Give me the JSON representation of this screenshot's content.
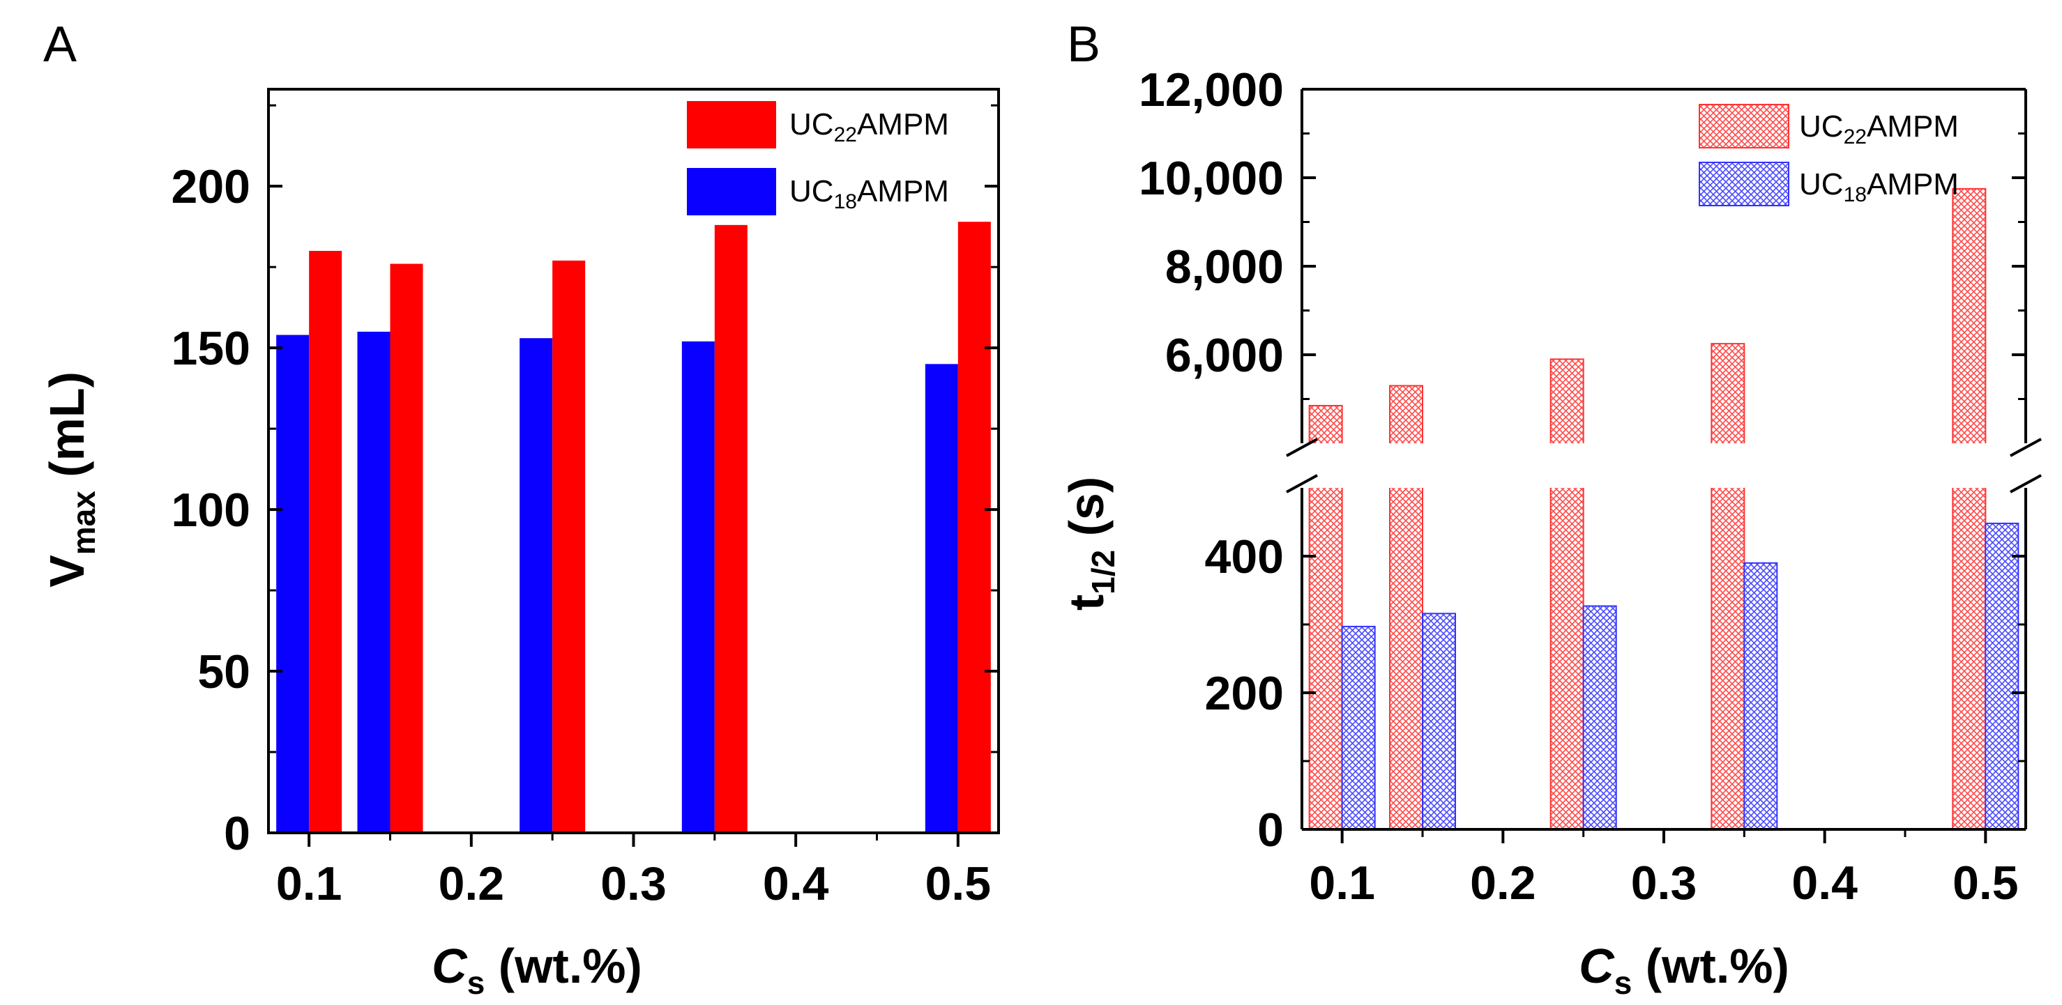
{
  "chart_data": [
    {
      "panel_label": "A",
      "type": "bar",
      "categories": [
        0.1,
        0.15,
        0.25,
        0.35,
        0.5
      ],
      "series": [
        {
          "name": "UC18AMPM",
          "display_name": {
            "prefix": "UC",
            "sub": "18",
            "suffix": "AMPM"
          },
          "color": "#0a00ff",
          "values": [
            154,
            155,
            153,
            152,
            145
          ]
        },
        {
          "name": "UC22AMPM",
          "display_name": {
            "prefix": "UC",
            "sub": "22",
            "suffix": "AMPM"
          },
          "color": "#ff0000",
          "values": [
            180,
            176,
            177,
            188,
            189
          ]
        }
      ],
      "xlim": [
        0.075,
        0.525
      ],
      "x_ticks": [
        0.1,
        0.2,
        0.3,
        0.4,
        0.5
      ],
      "x_tick_labels": [
        "0.1",
        "0.2",
        "0.3",
        "0.4",
        "0.5"
      ],
      "ylim": [
        0,
        230
      ],
      "y_ticks": [
        0,
        50,
        100,
        150,
        200
      ],
      "y_tick_labels": [
        "0",
        "50",
        "100",
        "150",
        "200"
      ],
      "xlabel": {
        "main": "C",
        "sub": "s",
        "rest": " (wt.%)"
      },
      "ylabel": {
        "main": "V",
        "sub": "max",
        "rest": " (mL)"
      },
      "legend_position": "top-right",
      "grid": false
    },
    {
      "panel_label": "B",
      "type": "bar",
      "fill": "hatched",
      "categories": [
        0.1,
        0.15,
        0.25,
        0.35,
        0.5
      ],
      "series": [
        {
          "name": "UC22AMPM",
          "display_name": {
            "prefix": "UC",
            "sub": "22",
            "suffix": "AMPM"
          },
          "color": "#ff3333",
          "values": [
            4850,
            5300,
            5900,
            6250,
            9750
          ]
        },
        {
          "name": "UC18AMPM",
          "display_name": {
            "prefix": "UC",
            "sub": "18",
            "suffix": "AMPM"
          },
          "color": "#3333ff",
          "values": [
            297,
            316,
            327,
            390,
            448
          ]
        }
      ],
      "xlim": [
        0.075,
        0.525
      ],
      "x_ticks": [
        0.1,
        0.2,
        0.3,
        0.4,
        0.5
      ],
      "x_tick_labels": [
        "0.1",
        "0.2",
        "0.3",
        "0.4",
        "0.5"
      ],
      "y_axis_break": {
        "lower": {
          "range": [
            0,
            500
          ],
          "ticks": [
            0,
            200,
            400
          ],
          "labels": [
            "0",
            "200",
            "400"
          ]
        },
        "upper": {
          "range": [
            4000,
            12000
          ],
          "ticks": [
            6000,
            8000,
            10000,
            12000
          ],
          "labels": [
            "6,000",
            "8,000",
            "10,000",
            "12,000"
          ]
        }
      },
      "xlabel": {
        "main": "C",
        "sub": "s",
        "rest": " (wt.%)"
      },
      "ylabel": {
        "main": "t",
        "sub": "1/2",
        "rest": " (s)"
      },
      "legend_position": "top-right",
      "grid": false
    }
  ]
}
